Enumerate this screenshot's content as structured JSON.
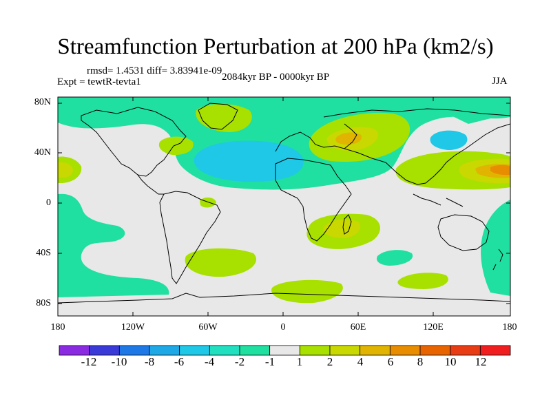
{
  "title": "Streamfunction Perturbation at 200 hPa (km2/s)",
  "stats": "rmsd= 1.4531 diff= 3.83941e-09",
  "expt": "Expt = tewtR-tevta1",
  "period": "2084kyr BP - 0000kyr BP",
  "season": "JJA",
  "lat_labels": [
    "80N",
    "40N",
    "0",
    "40S",
    "80S"
  ],
  "lon_labels": [
    "180",
    "120W",
    "60W",
    "0",
    "60E",
    "120E",
    "180"
  ],
  "colorbar": {
    "labels": [
      "-12",
      "-10",
      "-8",
      "-6",
      "-4",
      "-2",
      "-1",
      "1",
      "2",
      "4",
      "6",
      "8",
      "10",
      "12"
    ],
    "colors": [
      "#8a2be2",
      "#3a3ad8",
      "#1e78e6",
      "#1ea8e6",
      "#1ec8e6",
      "#20e0c0",
      "#1fe0a0",
      "#e8e8e8",
      "#a8e000",
      "#c8d800",
      "#e0b400",
      "#e88c00",
      "#e86400",
      "#e83c14",
      "#f01e1e"
    ]
  },
  "fill_colors": {
    "background": "#e8e8e8",
    "neg1": "#1fe0a0",
    "neg2": "#20e0c0",
    "neg4": "#1ec8e6",
    "pos1": "#a8e000",
    "pos2": "#c8d800",
    "pos4": "#e0b400",
    "pos6": "#e88c00"
  }
}
